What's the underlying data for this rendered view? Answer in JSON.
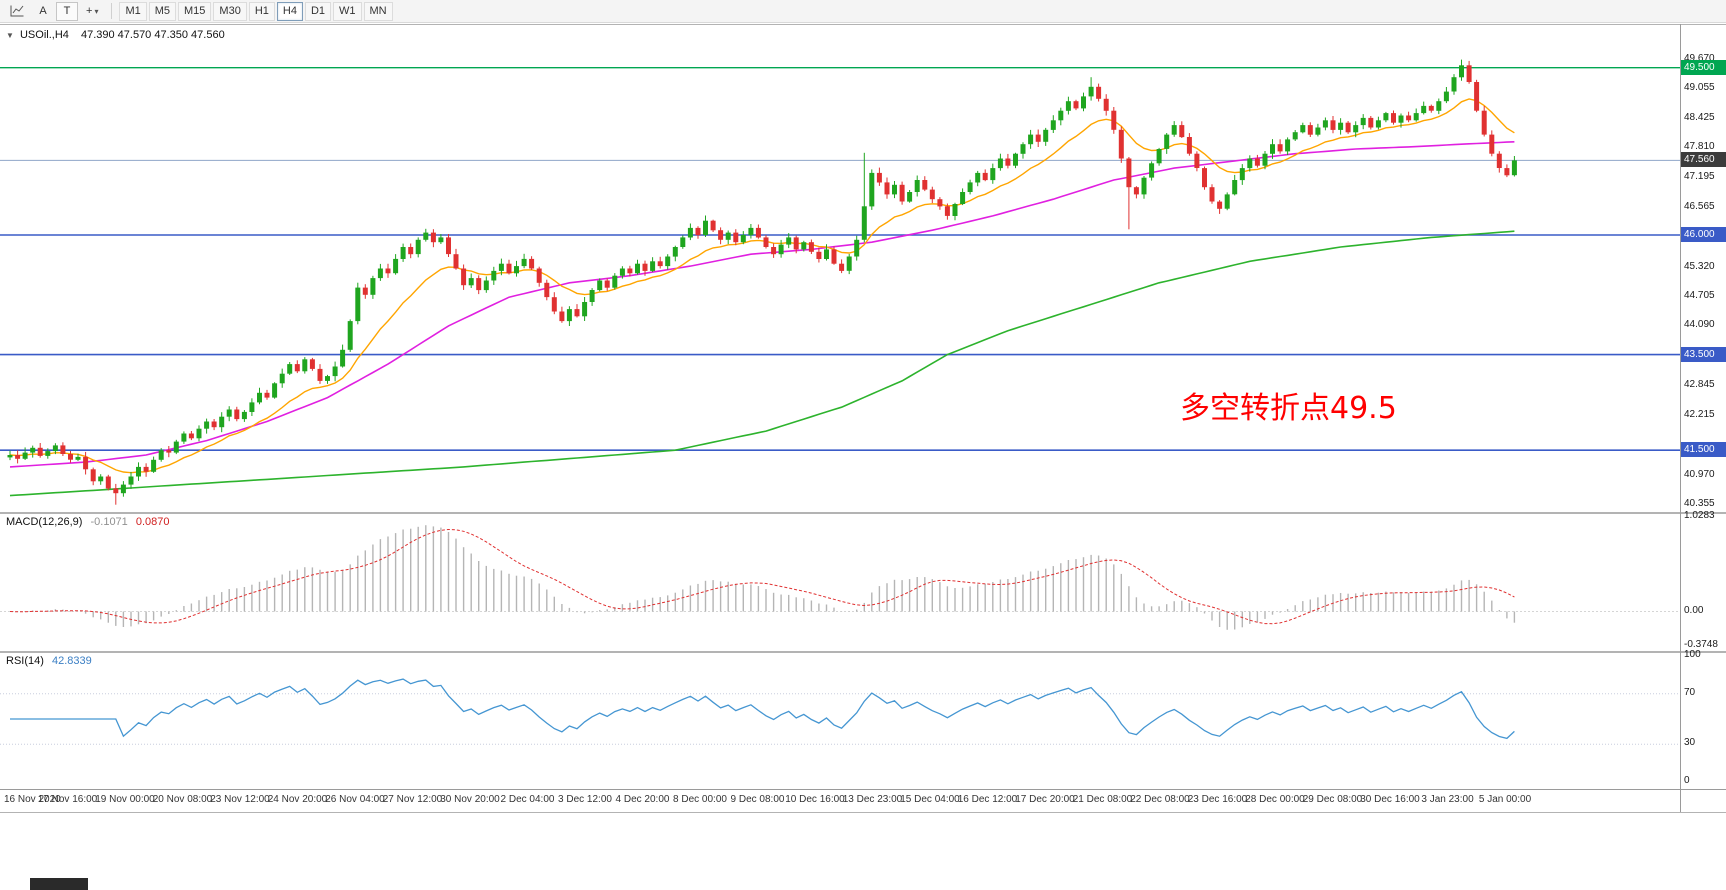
{
  "toolbar": {
    "a_label": "A",
    "t_label": "T",
    "tools_glyph": "+",
    "caret_glyph": "▾",
    "timeframes": [
      {
        "label": "M1"
      },
      {
        "label": "M5"
      },
      {
        "label": "M15"
      },
      {
        "label": "M30"
      },
      {
        "label": "H1"
      },
      {
        "label": "H4",
        "selected": true
      },
      {
        "label": "D1"
      },
      {
        "label": "W1"
      },
      {
        "label": "MN"
      }
    ]
  },
  "chart_header": {
    "collapse_glyph": "▼",
    "symbol_period": "USOil.,H4",
    "ohlc": "47.390 47.570 47.350 47.560"
  },
  "chart_data": {
    "type": "candlestick",
    "symbol": "USOil",
    "timeframe": "H4",
    "ylim": [
      40.27,
      50.33
    ],
    "first_open": 41.35,
    "current_price": 47.56,
    "current_price_label": "47.560",
    "closes": [
      41.4,
      41.32,
      41.45,
      41.55,
      41.38,
      41.48,
      41.6,
      41.42,
      41.3,
      41.36,
      41.1,
      40.85,
      40.95,
      40.7,
      40.6,
      40.78,
      40.95,
      41.15,
      41.05,
      41.3,
      41.5,
      41.45,
      41.68,
      41.85,
      41.75,
      41.95,
      42.1,
      41.98,
      42.2,
      42.35,
      42.15,
      42.3,
      42.5,
      42.7,
      42.6,
      42.9,
      43.1,
      43.3,
      43.15,
      43.4,
      43.2,
      42.95,
      43.05,
      43.25,
      43.6,
      44.2,
      44.9,
      44.75,
      45.1,
      45.3,
      45.2,
      45.5,
      45.75,
      45.6,
      45.9,
      46.05,
      45.85,
      45.95,
      45.6,
      45.3,
      44.95,
      45.1,
      44.85,
      45.05,
      45.25,
      45.4,
      45.2,
      45.35,
      45.5,
      45.3,
      45.0,
      44.7,
      44.4,
      44.2,
      44.45,
      44.3,
      44.6,
      44.85,
      45.05,
      44.9,
      45.15,
      45.3,
      45.2,
      45.4,
      45.25,
      45.45,
      45.35,
      45.55,
      45.75,
      45.95,
      46.15,
      46.0,
      46.3,
      46.1,
      45.9,
      46.05,
      45.85,
      46.0,
      46.15,
      45.95,
      45.75,
      45.6,
      45.8,
      45.95,
      45.7,
      45.85,
      45.65,
      45.5,
      45.7,
      45.4,
      45.25,
      45.55,
      45.9,
      46.6,
      47.3,
      47.1,
      46.85,
      47.05,
      46.7,
      46.9,
      47.15,
      46.95,
      46.75,
      46.6,
      46.4,
      46.65,
      46.9,
      47.1,
      47.3,
      47.15,
      47.4,
      47.6,
      47.45,
      47.7,
      47.9,
      48.1,
      47.95,
      48.2,
      48.4,
      48.6,
      48.8,
      48.65,
      48.9,
      49.1,
      48.85,
      48.6,
      48.2,
      47.6,
      47.0,
      46.85,
      47.2,
      47.5,
      47.8,
      48.1,
      48.3,
      48.05,
      47.7,
      47.4,
      47.0,
      46.7,
      46.55,
      46.85,
      47.15,
      47.4,
      47.6,
      47.45,
      47.7,
      47.9,
      47.75,
      48.0,
      48.15,
      48.3,
      48.1,
      48.25,
      48.4,
      48.2,
      48.35,
      48.15,
      48.3,
      48.45,
      48.25,
      48.4,
      48.55,
      48.35,
      48.5,
      48.4,
      48.55,
      48.7,
      48.6,
      48.8,
      49.0,
      49.3,
      49.55,
      49.2,
      48.6,
      48.1,
      47.7,
      47.4,
      47.25,
      47.56
    ],
    "wick_overrides": {
      "14": {
        "low": 40.36
      },
      "113": {
        "high": 47.72
      },
      "143": {
        "high": 49.3
      },
      "148": {
        "low": 46.12
      },
      "192": {
        "high": 49.67
      }
    },
    "h_lines": [
      {
        "price": 49.5,
        "color": "#00a651",
        "label": "49.500",
        "width": 1.4
      },
      {
        "price": 46.0,
        "color": "#3a5bc7",
        "label": "46.000",
        "width": 1.6
      },
      {
        "price": 43.5,
        "color": "#3a5bc7",
        "label": "43.500",
        "width": 1.6
      },
      {
        "price": 41.5,
        "color": "#3a5bc7",
        "label": "41.500",
        "width": 1.6
      }
    ],
    "price_ticks": [
      49.67,
      49.055,
      48.425,
      47.81,
      47.195,
      46.565,
      45.32,
      44.705,
      44.09,
      42.845,
      42.215,
      40.97,
      40.355
    ],
    "ma_slow_anchors": [
      [
        0,
        40.55
      ],
      [
        30,
        40.85
      ],
      [
        60,
        41.15
      ],
      [
        88,
        41.5
      ],
      [
        100,
        41.9
      ],
      [
        110,
        42.4
      ],
      [
        118,
        42.95
      ],
      [
        124,
        43.5
      ],
      [
        132,
        44.0
      ],
      [
        142,
        44.5
      ],
      [
        152,
        45.0
      ],
      [
        164,
        45.45
      ],
      [
        176,
        45.75
      ],
      [
        188,
        45.95
      ],
      [
        199,
        46.08
      ]
    ],
    "ma_mid_anchors": [
      [
        0,
        41.15
      ],
      [
        10,
        41.25
      ],
      [
        18,
        41.4
      ],
      [
        26,
        41.7
      ],
      [
        34,
        42.1
      ],
      [
        42,
        42.6
      ],
      [
        50,
        43.3
      ],
      [
        58,
        44.1
      ],
      [
        66,
        44.7
      ],
      [
        74,
        45.0
      ],
      [
        82,
        45.15
      ],
      [
        90,
        45.35
      ],
      [
        98,
        45.6
      ],
      [
        106,
        45.7
      ],
      [
        114,
        45.85
      ],
      [
        122,
        46.1
      ],
      [
        130,
        46.4
      ],
      [
        138,
        46.75
      ],
      [
        146,
        47.15
      ],
      [
        154,
        47.4
      ],
      [
        162,
        47.55
      ],
      [
        170,
        47.7
      ],
      [
        178,
        47.8
      ],
      [
        186,
        47.85
      ],
      [
        192,
        47.9
      ],
      [
        199,
        47.95
      ]
    ],
    "annotation": {
      "text": "多空转折点49.5",
      "color": "#ff0000"
    },
    "macd": {
      "name": "MACD(12,26,9)",
      "main": "-0.1071",
      "signal": "0.0870",
      "scale": [
        -0.3748,
        1.0283
      ],
      "ticks": [
        "1.0283",
        "0.00",
        "-0.3748"
      ],
      "tick_values": [
        1.0283,
        0,
        -0.3748
      ]
    },
    "rsi": {
      "name": "RSI(14)",
      "value": "42.8339",
      "levels": [
        70,
        30
      ],
      "ticks": [
        "100",
        "70",
        "30",
        "0"
      ],
      "tick_values": [
        100,
        70,
        30,
        0
      ]
    },
    "time_axis": [
      "16 Nov 2020",
      "17 Nov 16:00",
      "19 Nov 00:00",
      "20 Nov 08:00",
      "23 Nov 12:00",
      "24 Nov 20:00",
      "26 Nov 04:00",
      "27 Nov 12:00",
      "30 Nov 20:00",
      "2 Dec 04:00",
      "3 Dec 12:00",
      "4 Dec 20:00",
      "8 Dec 00:00",
      "9 Dec 08:00",
      "10 Dec 16:00",
      "13 Dec 23:00",
      "15 Dec 04:00",
      "16 Dec 12:00",
      "17 Dec 20:00",
      "21 Dec 08:00",
      "22 Dec 08:00",
      "23 Dec 16:00",
      "28 Dec 00:00",
      "29 Dec 08:00",
      "30 Dec 16:00",
      "3 Jan 23:00",
      "5 Jan 00:00"
    ],
    "colors": {
      "bull": "#1fa51f",
      "bear": "#e03131",
      "ma_fast": "#ffa500",
      "ma_mid": "#e020e0",
      "ma_slow": "#2db32d",
      "price_line": "#8fa6c8",
      "price_badge": "#3c3c3c",
      "macd_hist": "#b5b5b5",
      "macd_signal": "#e03030",
      "rsi": "#4596d2"
    }
  }
}
